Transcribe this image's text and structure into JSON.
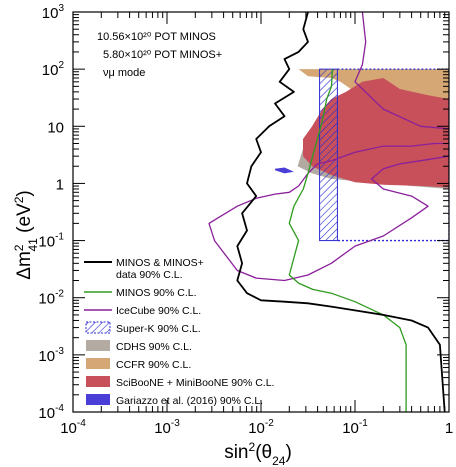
{
  "chart_data": {
    "type": "line",
    "xscale": "log",
    "yscale": "log",
    "xlim": [
      0.0001,
      1
    ],
    "ylim": [
      0.0001,
      1000
    ],
    "x_ticks": [
      {
        "value": 0.0001,
        "base": "10",
        "exp": "-4"
      },
      {
        "value": 0.001,
        "base": "10",
        "exp": "-3"
      },
      {
        "value": 0.01,
        "base": "10",
        "exp": "-2"
      },
      {
        "value": 0.1,
        "base": "10",
        "exp": "-1"
      },
      {
        "value": 1,
        "base": "1",
        "exp": ""
      }
    ],
    "y_ticks": [
      {
        "value": 0.0001,
        "base": "10",
        "exp": "-4"
      },
      {
        "value": 0.001,
        "base": "10",
        "exp": "-3"
      },
      {
        "value": 0.01,
        "base": "10",
        "exp": "-2"
      },
      {
        "value": 0.1,
        "base": "10",
        "exp": "-1"
      },
      {
        "value": 1,
        "base": "1",
        "exp": ""
      },
      {
        "value": 10,
        "base": "10",
        "exp": ""
      },
      {
        "value": 100,
        "base": "10",
        "exp": "2"
      },
      {
        "value": 1000,
        "base": "10",
        "exp": "3"
      }
    ],
    "xlabel": "sin²(θ24)",
    "ylabel": "Δm²41 (eV²)",
    "annotations": [
      "10.56×10²⁰ POT MINOS",
      "5.80×10²⁰ POT MINOS+",
      "νμ mode"
    ],
    "legend_position": "bottom-left",
    "legend": [
      {
        "label": "MINOS & MINOS+",
        "label2": "data 90% C.L.",
        "style": "line",
        "color": "#000000"
      },
      {
        "label": "MINOS 90% C.L.",
        "style": "line",
        "color": "#2e9b1e"
      },
      {
        "label": "IceCube 90% C.L.",
        "style": "line",
        "color": "#8a1f9a"
      },
      {
        "label": "Super-K 90% C.L.",
        "style": "hatch",
        "color": "#2a2ad0"
      },
      {
        "label": "CDHS 90% C.L.",
        "style": "fill",
        "color": "#b3aaa2"
      },
      {
        "label": "CCFR 90% C.L.",
        "style": "fill",
        "color": "#d4a774"
      },
      {
        "label": "SciBooNE + MiniBooNE 90% C.L.",
        "style": "fill",
        "color": "#c7505a"
      },
      {
        "label": "Gariazzo et al. (2016) 90% C.L.",
        "style": "fill",
        "color": "#4a3ed6"
      }
    ],
    "series": [
      {
        "name": "MINOS & MINOS+",
        "color": "#000000",
        "points": [
          [
            0.0316,
            1000
          ],
          [
            0.0282,
            500
          ],
          [
            0.0316,
            300
          ],
          [
            0.0251,
            200
          ],
          [
            0.0178,
            150
          ],
          [
            0.02,
            100
          ],
          [
            0.0158,
            60
          ],
          [
            0.0224,
            40
          ],
          [
            0.0141,
            25
          ],
          [
            0.0178,
            15
          ],
          [
            0.0122,
            10
          ],
          [
            0.0089,
            6
          ],
          [
            0.01,
            3.5
          ],
          [
            0.0079,
            2
          ],
          [
            0.0071,
            1
          ],
          [
            0.0089,
            0.6
          ],
          [
            0.0063,
            0.3
          ],
          [
            0.0071,
            0.15
          ],
          [
            0.0056,
            0.08
          ],
          [
            0.0063,
            0.04
          ],
          [
            0.0056,
            0.02
          ],
          [
            0.0071,
            0.012
          ],
          [
            0.01,
            0.009
          ],
          [
            0.0178,
            0.0085
          ],
          [
            0.0316,
            0.008
          ],
          [
            0.056,
            0.007
          ],
          [
            0.1,
            0.006
          ],
          [
            0.2,
            0.005
          ],
          [
            0.4,
            0.004
          ],
          [
            0.6,
            0.003
          ],
          [
            0.8,
            0.0015
          ],
          [
            0.9,
            0.0001
          ]
        ]
      },
      {
        "name": "MINOS",
        "color": "#2e9b1e",
        "points": [
          [
            0.0575,
            100
          ],
          [
            0.0562,
            50
          ],
          [
            0.05,
            30
          ],
          [
            0.0447,
            12
          ],
          [
            0.0398,
            6
          ],
          [
            0.0355,
            3
          ],
          [
            0.0316,
            1.5
          ],
          [
            0.0282,
            0.8
          ],
          [
            0.0224,
            0.4
          ],
          [
            0.02,
            0.2
          ],
          [
            0.0251,
            0.1
          ],
          [
            0.0224,
            0.05
          ],
          [
            0.02,
            0.025
          ],
          [
            0.0251,
            0.018
          ],
          [
            0.0355,
            0.014
          ],
          [
            0.056,
            0.012
          ],
          [
            0.1,
            0.0085
          ],
          [
            0.2,
            0.005
          ],
          [
            0.3,
            0.003
          ],
          [
            0.35,
            0.0015
          ],
          [
            0.35,
            0.0001
          ]
        ]
      },
      {
        "name": "IceCube",
        "color": "#8a1f9a",
        "points": [
          [
            0.12,
            1000
          ],
          [
            0.13,
            300
          ],
          [
            0.12,
            120
          ],
          [
            0.1,
            60
          ],
          [
            0.2,
            20
          ],
          [
            0.5,
            10
          ],
          [
            1,
            9
          ],
          [
            1,
            3
          ],
          [
            0.5,
            2.5
          ],
          [
            0.3,
            2.2
          ],
          [
            0.2,
            1.8
          ],
          [
            0.15,
            1.2
          ],
          [
            0.2,
            0.8
          ],
          [
            0.4,
            0.6
          ],
          [
            0.6,
            0.4
          ],
          [
            0.4,
            0.25
          ],
          [
            0.2,
            0.12
          ],
          [
            0.1,
            0.08
          ],
          [
            0.056,
            0.04
          ],
          [
            0.0316,
            0.025
          ],
          [
            0.0178,
            0.02
          ],
          [
            0.0089,
            0.022
          ],
          [
            0.0056,
            0.03
          ],
          [
            0.0032,
            0.1
          ],
          [
            0.0028,
            0.2
          ],
          [
            0.0035,
            0.25
          ],
          [
            0.0056,
            0.4
          ],
          [
            0.0089,
            0.55
          ],
          [
            0.0141,
            0.65
          ],
          [
            0.02,
            0.7
          ],
          [
            0.0251,
            0.9
          ],
          [
            0.0316,
            1.5
          ],
          [
            0.0398,
            2.2
          ],
          [
            0.056,
            2.5
          ],
          [
            0.1,
            3.5
          ],
          [
            0.2,
            4.5
          ],
          [
            0.4,
            4.5
          ],
          [
            0.7,
            5
          ],
          [
            1,
            5
          ]
        ]
      },
      {
        "name": "Super-K",
        "color": "#2a2ad0",
        "region_x": [
          0.042,
          1
        ],
        "region_y": [
          0.1,
          100
        ],
        "hatched_x": [
          0.042,
          0.065
        ]
      },
      {
        "name": "CDHS",
        "color": "#b3aaa2",
        "points": [
          [
            0.0245,
            2
          ],
          [
            0.035,
            1.5
          ],
          [
            0.056,
            1.2
          ],
          [
            0.1,
            1.1
          ],
          [
            0.2,
            1
          ],
          [
            0.4,
            0.9
          ],
          [
            1,
            0.8
          ],
          [
            1,
            20
          ],
          [
            0.3,
            25
          ],
          [
            0.1,
            20
          ],
          [
            0.05,
            12
          ],
          [
            0.035,
            7
          ],
          [
            0.028,
            4
          ]
        ]
      },
      {
        "name": "CCFR",
        "color": "#d4a774",
        "points": [
          [
            0.0251,
            100
          ],
          [
            1,
            100
          ],
          [
            1,
            20
          ],
          [
            0.3,
            22
          ],
          [
            0.15,
            30
          ],
          [
            0.1,
            40
          ],
          [
            0.07,
            60
          ],
          [
            0.056,
            70
          ],
          [
            0.0316,
            75
          ]
        ]
      },
      {
        "name": "SciBooNE + MiniBooNE",
        "color": "#c7505a",
        "points": [
          [
            0.028,
            3
          ],
          [
            0.035,
            2
          ],
          [
            0.056,
            1.4
          ],
          [
            0.1,
            1.05
          ],
          [
            0.2,
            0.95
          ],
          [
            0.5,
            0.9
          ],
          [
            1,
            0.85
          ],
          [
            1,
            30
          ],
          [
            0.6,
            35
          ],
          [
            0.3,
            45
          ],
          [
            0.2,
            70
          ],
          [
            0.12,
            60
          ],
          [
            0.08,
            40
          ],
          [
            0.056,
            30
          ],
          [
            0.045,
            20
          ],
          [
            0.035,
            10
          ],
          [
            0.028,
            6
          ]
        ]
      },
      {
        "name": "Gariazzo et al. (2016)",
        "color": "#4a3ed6",
        "points": [
          [
            0.0141,
            1.7
          ],
          [
            0.0178,
            1.5
          ],
          [
            0.0224,
            1.6
          ],
          [
            0.0178,
            1.9
          ],
          [
            0.0141,
            1.8
          ]
        ]
      }
    ]
  }
}
